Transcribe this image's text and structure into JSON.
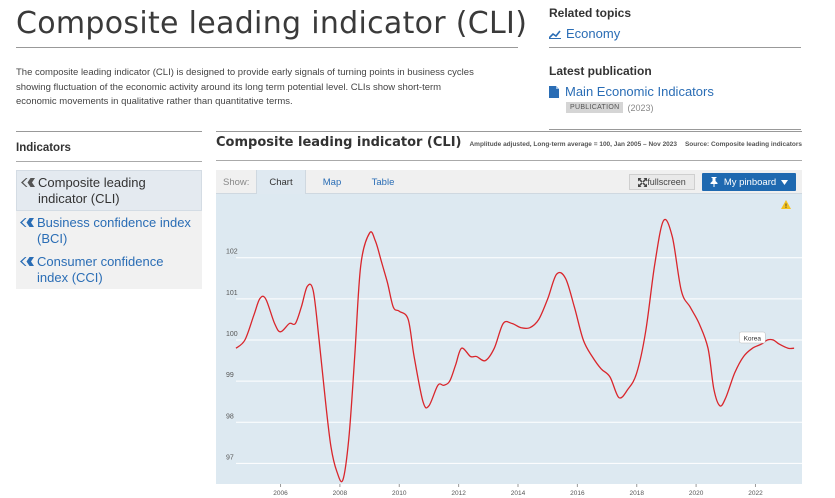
{
  "page": {
    "title": "Composite leading indicator (CLI)",
    "intro": "The composite leading indicator (CLI) is designed to provide early signals of turning points in business cycles showing fluctuation of the economic activity around its long term potential level. CLIs show short-term economic movements in qualitative rather than quantitative terms."
  },
  "related": {
    "heading": "Related topics",
    "topic": "Economy"
  },
  "latest": {
    "heading": "Latest publication",
    "title": "Main Economic Indicators",
    "badge": "PUBLICATION",
    "year": "(2023)"
  },
  "indicators": {
    "heading": "Indicators",
    "items": [
      {
        "label": "Composite leading indicator (CLI)",
        "active": true
      },
      {
        "label": "Business confidence index (BCI)",
        "active": false
      },
      {
        "label": "Consumer confidence index (CCI)",
        "active": false
      }
    ]
  },
  "chart_header": {
    "title": "Composite leading indicator (CLI)",
    "subtitle": "Amplitude adjusted, Long-term average = 100, Jan 2005 – Nov 2023",
    "source": "Source: Composite leading indicators"
  },
  "toolbar": {
    "show_label": "Show:",
    "tabs": [
      "Chart",
      "Map",
      "Table"
    ],
    "active_tab": "Chart",
    "fullscreen_label": "fullscreen",
    "pinboard_label": "My pinboard"
  },
  "colors": {
    "accent": "#2a6db5",
    "plot_bg": "#dde9f1",
    "series_line": "#d9262c",
    "warning": "#f4c21d"
  },
  "chart_data": {
    "type": "line",
    "x_ticks": [
      "2006",
      "2008",
      "2010",
      "2012",
      "2014",
      "2016",
      "2018",
      "2020",
      "2022"
    ],
    "y_ticks": [
      "97",
      "98",
      "99",
      "100",
      "101",
      "102"
    ],
    "ylim": [
      96.5,
      103.5
    ],
    "xlim": [
      2005.0,
      2024.0
    ],
    "grid": true,
    "series": [
      {
        "name": "Korea",
        "color": "#d9262c",
        "x": [
          2005.0,
          2005.3,
          2005.6,
          2005.8,
          2006.0,
          2006.3,
          2006.5,
          2006.8,
          2007.0,
          2007.2,
          2007.4,
          2007.6,
          2007.8,
          2008.0,
          2008.2,
          2008.4,
          2008.6,
          2008.8,
          2009.0,
          2009.2,
          2009.5,
          2009.7,
          2009.9,
          2010.1,
          2010.3,
          2010.5,
          2010.8,
          2011.0,
          2011.3,
          2011.5,
          2011.8,
          2012.0,
          2012.2,
          2012.4,
          2012.6,
          2012.9,
          2013.1,
          2013.4,
          2013.7,
          2014.0,
          2014.3,
          2014.6,
          2014.9,
          2015.2,
          2015.5,
          2015.8,
          2016.1,
          2016.4,
          2016.7,
          2017.0,
          2017.3,
          2017.6,
          2017.9,
          2018.2,
          2018.5,
          2018.8,
          2019.1,
          2019.4,
          2019.7,
          2020.0,
          2020.3,
          2020.6,
          2020.9,
          2021.1,
          2021.3,
          2021.5,
          2021.8,
          2022.1,
          2022.4,
          2022.7,
          2022.9,
          2023.1,
          2023.3,
          2023.6,
          2023.8
        ],
        "values": [
          99.8,
          100.0,
          100.6,
          101.0,
          101.0,
          100.4,
          100.2,
          100.4,
          100.4,
          100.8,
          101.3,
          101.2,
          100.0,
          98.6,
          97.4,
          96.8,
          96.6,
          97.6,
          99.6,
          101.8,
          102.6,
          102.4,
          101.9,
          101.4,
          100.8,
          100.7,
          100.5,
          99.6,
          98.5,
          98.4,
          98.9,
          98.9,
          99.0,
          99.4,
          99.8,
          99.6,
          99.6,
          99.5,
          99.8,
          100.4,
          100.4,
          100.3,
          100.3,
          100.5,
          101.0,
          101.6,
          101.5,
          100.8,
          100.0,
          99.6,
          99.3,
          99.1,
          98.6,
          98.8,
          99.2,
          100.2,
          101.8,
          102.9,
          102.5,
          101.2,
          100.8,
          100.4,
          99.8,
          98.8,
          98.4,
          98.6,
          99.2,
          99.6,
          99.8,
          99.9,
          100.0,
          100.0,
          99.9,
          99.8,
          99.8
        ]
      }
    ]
  }
}
